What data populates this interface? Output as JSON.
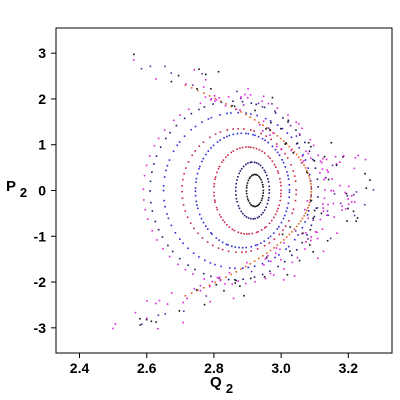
{
  "chart_data": {
    "type": "scatter",
    "xlabel_main": "Q",
    "xlabel_sub": "2",
    "ylabel_main": "P",
    "ylabel_sub": "2",
    "xlim": [
      2.33,
      3.33
    ],
    "ylim": [
      -3.55,
      3.55
    ],
    "x_ticks": [
      2.4,
      2.6,
      2.8,
      3.0,
      3.2
    ],
    "x_tick_labels": [
      "2.4",
      "2.6",
      "2.8",
      "3.0",
      "3.2"
    ],
    "y_ticks": [
      -3,
      -2,
      -1,
      0,
      1,
      2,
      3
    ],
    "y_tick_labels": [
      "-3",
      "-2",
      "-1",
      "0",
      "1",
      "2",
      "3"
    ],
    "grid": false,
    "colors": {
      "black": "#111111",
      "navy": "#1a1a6e",
      "crimson": "#cc2244",
      "blue": "#2a2ad8",
      "purple": "#6a2aa8",
      "magenta": "#e020e0",
      "orange": "#e06020"
    },
    "series": [
      {
        "color_key": "black",
        "orbit": "ellipse",
        "cx": 2.922,
        "a": 0.025,
        "b": 0.35,
        "n": 36
      },
      {
        "color_key": "navy",
        "orbit": "ellipse",
        "cx": 2.915,
        "a": 0.05,
        "b": 0.62,
        "n": 48
      },
      {
        "color_key": "crimson",
        "orbit": "ellipse",
        "cx": 2.9,
        "a": 0.1,
        "b": 0.95,
        "n": 70
      },
      {
        "color_key": "blue",
        "orbit": "ellipse",
        "cx": 2.885,
        "a": 0.14,
        "b": 1.25,
        "n": 80
      },
      {
        "color_key": "crimson",
        "orbit": "ellipse",
        "cx": 2.875,
        "a": 0.17,
        "b": 1.35,
        "n": 60
      },
      {
        "color_key": "blue",
        "orbit": "ellipse",
        "cx": 2.87,
        "a": 0.22,
        "b": 1.7,
        "n": 70
      },
      {
        "color_key": "navy",
        "orbit": "ellipse",
        "cx": 2.86,
        "a": 0.25,
        "b": 1.95,
        "n": 60
      },
      {
        "color_key": "magenta",
        "orbit": "ellipse",
        "cx": 2.86,
        "a": 0.27,
        "b": 2.05,
        "n": 55
      },
      {
        "color_key": "orange",
        "orbit": "separatrix",
        "x0": 2.715,
        "d": 0.375,
        "t_max": 2.3,
        "n": 80
      },
      {
        "color_key": "magenta",
        "orbit": "chaotic",
        "x0": 2.74,
        "d": 0.455,
        "t_max": 2.55,
        "n": 60,
        "spread": 0.05
      },
      {
        "color_key": "black",
        "orbit": "chaotic",
        "x0": 2.72,
        "d": 0.47,
        "t_max": 2.95,
        "n": 70,
        "spread": 0.09
      },
      {
        "color_key": "magenta",
        "orbit": "chaotic",
        "x0": 2.7,
        "d": 0.5,
        "t_max": 3.0,
        "n": 60,
        "spread": 0.11
      },
      {
        "color_key": "purple",
        "orbit": "chaotic",
        "x0": 2.73,
        "d": 0.47,
        "t_max": 2.85,
        "n": 40,
        "spread": 0.08
      }
    ]
  }
}
